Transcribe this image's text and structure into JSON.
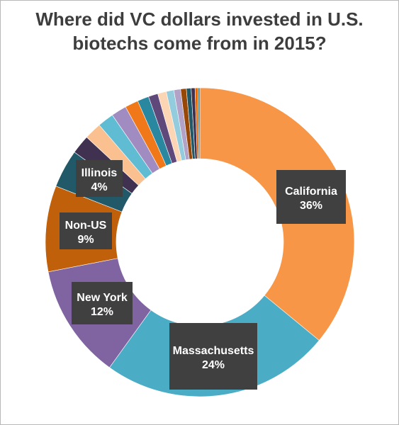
{
  "chart_data": {
    "type": "pie",
    "donut": true,
    "title": "Where did VC dollars invested in U.S. biotechs come from in 2015?",
    "title_lines": [
      "Where did VC dollars invested in U.S.",
      "biotechs come from in 2015?"
    ],
    "xlabel": "",
    "ylabel": "",
    "legend": "none",
    "slices": [
      {
        "label": "California",
        "value": 36,
        "value_label": "36%",
        "color": "#f79646"
      },
      {
        "label": "Massachusetts",
        "value": 24,
        "value_label": "24%",
        "color": "#4bacc6"
      },
      {
        "label": "New York",
        "value": 12,
        "value_label": "12%",
        "color": "#8064a2"
      },
      {
        "label": "Non-US",
        "value": 9,
        "value_label": "9%",
        "color": "#c0600a"
      },
      {
        "label": "Illinois",
        "value": 4,
        "value_label": "4%",
        "color": "#215968"
      },
      {
        "label": "",
        "value": 2.0,
        "color": "#403151"
      },
      {
        "label": "",
        "value": 1.8,
        "color": "#fac090"
      },
      {
        "label": "",
        "value": 1.7,
        "color": "#5fbcd3"
      },
      {
        "label": "",
        "value": 1.6,
        "color": "#a08cc0"
      },
      {
        "label": "",
        "value": 1.4,
        "color": "#f07818"
      },
      {
        "label": "",
        "value": 1.2,
        "color": "#2a87a0"
      },
      {
        "label": "",
        "value": 1.0,
        "color": "#5f497a"
      },
      {
        "label": "",
        "value": 0.9,
        "color": "#fcd5b4"
      },
      {
        "label": "",
        "value": 0.8,
        "color": "#93cddd"
      },
      {
        "label": "",
        "value": 0.7,
        "color": "#b3a2c7"
      },
      {
        "label": "",
        "value": 0.6,
        "color": "#984806"
      },
      {
        "label": "",
        "value": 0.5,
        "color": "#215968"
      },
      {
        "label": "",
        "value": 0.4,
        "color": "#403151"
      },
      {
        "label": "",
        "value": 0.3,
        "color": "#e46c0a"
      },
      {
        "label": "",
        "value": 0.2,
        "color": "#31859c"
      }
    ],
    "label_box_color": "#404040",
    "label_text_color": "#ffffff"
  }
}
